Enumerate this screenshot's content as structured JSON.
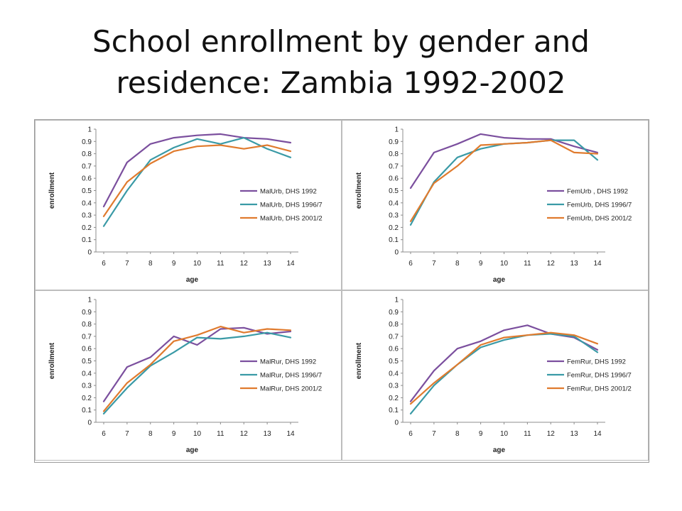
{
  "slide": {
    "title_line1": "School enrollment by gender and",
    "title_line2": "residence: Zambia 1992-2002"
  },
  "chart_data": [
    {
      "type": "line",
      "xlabel": "age",
      "ylabel": "enrollment",
      "ylim": [
        0,
        1
      ],
      "yticks": [
        "0",
        "0.1",
        "0.2",
        "0.3",
        "0.4",
        "0.5",
        "0.6",
        "0.7",
        "0.8",
        "0.9",
        "1"
      ],
      "x": [
        6,
        7,
        8,
        9,
        10,
        11,
        12,
        13,
        14
      ],
      "legend_position": "right",
      "grid": false,
      "series": [
        {
          "name": "MalUrb, DHS 1992",
          "color": "#7B4F9E",
          "values": [
            0.37,
            0.73,
            0.88,
            0.93,
            0.95,
            0.96,
            0.93,
            0.92,
            0.89
          ]
        },
        {
          "name": "MalUrb, DHS 1996/7",
          "color": "#3A9AA6",
          "values": [
            0.21,
            0.5,
            0.75,
            0.85,
            0.92,
            0.88,
            0.93,
            0.84,
            0.77
          ]
        },
        {
          "name": "MalUrb, DHS 2001/2",
          "color": "#E07B2E",
          "values": [
            0.29,
            0.57,
            0.72,
            0.82,
            0.86,
            0.87,
            0.84,
            0.87,
            0.82
          ]
        }
      ]
    },
    {
      "type": "line",
      "xlabel": "age",
      "ylabel": "enrollment",
      "ylim": [
        0,
        1
      ],
      "yticks": [
        "0",
        "0.1",
        "0.2",
        "0.3",
        "0.4",
        "0.5",
        "0.6",
        "0.7",
        "0.8",
        "0.9",
        "1"
      ],
      "x": [
        6,
        7,
        8,
        9,
        10,
        11,
        12,
        13,
        14
      ],
      "legend_position": "right",
      "grid": false,
      "series": [
        {
          "name": "FemUrb , DHS 1992",
          "color": "#7B4F9E",
          "values": [
            0.52,
            0.81,
            0.88,
            0.96,
            0.93,
            0.92,
            0.92,
            0.86,
            0.81
          ]
        },
        {
          "name": "FemUrb, DHS 1996/7",
          "color": "#3A9AA6",
          "values": [
            0.22,
            0.57,
            0.77,
            0.84,
            0.88,
            0.89,
            0.91,
            0.91,
            0.75
          ]
        },
        {
          "name": "FemUrb, DHS 2001/2",
          "color": "#E07B2E",
          "values": [
            0.25,
            0.56,
            0.7,
            0.87,
            0.88,
            0.89,
            0.91,
            0.81,
            0.8
          ]
        }
      ]
    },
    {
      "type": "line",
      "xlabel": "age",
      "ylabel": "enrollment",
      "ylim": [
        0,
        1
      ],
      "yticks": [
        "0",
        "0.1",
        "0.2",
        "0.3",
        "0.4",
        "0.5",
        "0.6",
        "0.7",
        "0.8",
        "0.9",
        "1"
      ],
      "x": [
        6,
        7,
        8,
        9,
        10,
        11,
        12,
        13,
        14
      ],
      "legend_position": "right",
      "grid": false,
      "series": [
        {
          "name": "MalRur, DHS 1992",
          "color": "#7B4F9E",
          "values": [
            0.17,
            0.45,
            0.53,
            0.7,
            0.63,
            0.76,
            0.77,
            0.72,
            0.74
          ]
        },
        {
          "name": "MalRur, DHS 1996/7",
          "color": "#3A9AA6",
          "values": [
            0.07,
            0.28,
            0.46,
            0.57,
            0.69,
            0.68,
            0.7,
            0.73,
            0.69
          ]
        },
        {
          "name": "MalRur, DHS 2001/2",
          "color": "#E07B2E",
          "values": [
            0.09,
            0.32,
            0.47,
            0.66,
            0.71,
            0.78,
            0.73,
            0.76,
            0.75
          ]
        }
      ]
    },
    {
      "type": "line",
      "xlabel": "age",
      "ylabel": "enrollment",
      "ylim": [
        0,
        1
      ],
      "yticks": [
        "0",
        "0.1",
        "0.2",
        "0.3",
        "0.4",
        "0.5",
        "0.6",
        "0.7",
        "0.8",
        "0.9",
        "1"
      ],
      "x": [
        6,
        7,
        8,
        9,
        10,
        11,
        12,
        13,
        14
      ],
      "legend_position": "right",
      "grid": false,
      "series": [
        {
          "name": "FemRur, DHS 1992",
          "color": "#7B4F9E",
          "values": [
            0.17,
            0.42,
            0.6,
            0.66,
            0.75,
            0.79,
            0.72,
            0.69,
            0.59
          ]
        },
        {
          "name": "FemRur, DHS 1996/7",
          "color": "#3A9AA6",
          "values": [
            0.07,
            0.3,
            0.47,
            0.61,
            0.67,
            0.71,
            0.72,
            0.7,
            0.57
          ]
        },
        {
          "name": "FemRur, DHS 2001/2",
          "color": "#E07B2E",
          "values": [
            0.15,
            0.32,
            0.47,
            0.63,
            0.69,
            0.71,
            0.73,
            0.71,
            0.64
          ]
        }
      ]
    }
  ]
}
